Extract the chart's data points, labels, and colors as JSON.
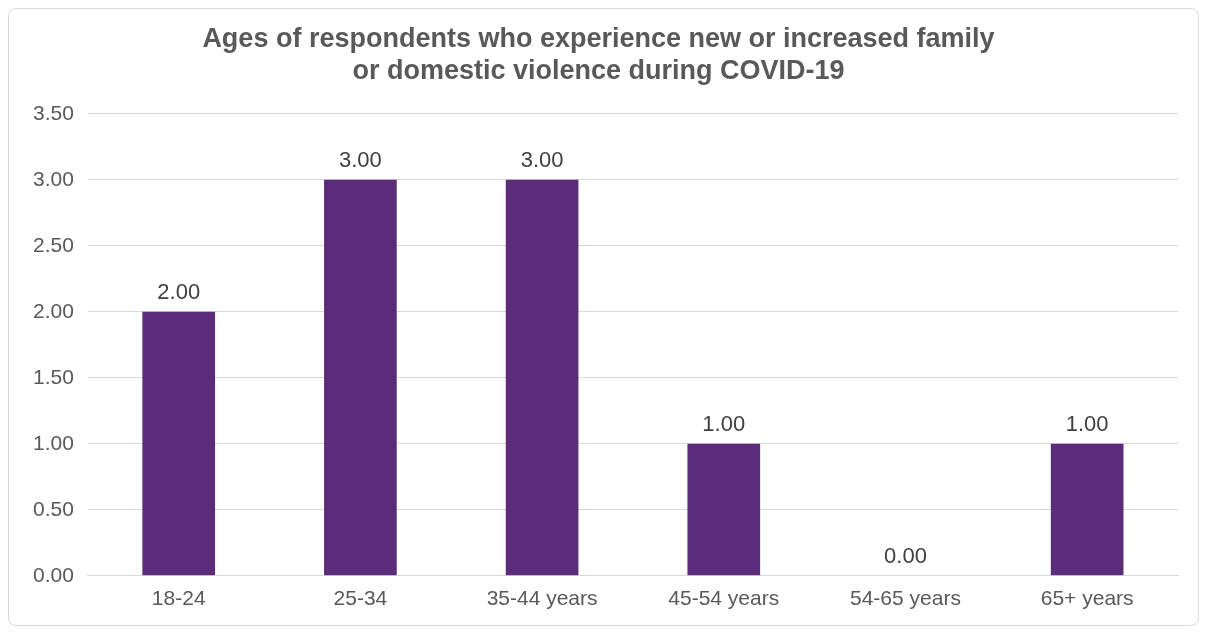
{
  "chart_data": {
    "type": "bar",
    "title": "Ages of respondents who experience new or increased family or domestic violence during COVID-19",
    "categories": [
      "18-24",
      "25-34",
      "35-44 years",
      "45-54 years",
      "54-65 years",
      "65+ years"
    ],
    "values": [
      2,
      3,
      3,
      1,
      0,
      1
    ],
    "value_labels": [
      "2.00",
      "3.00",
      "3.00",
      "1.00",
      "0.00",
      "1.00"
    ],
    "color": "#5b2c7a",
    "ylim": [
      0,
      3.5
    ],
    "yticks": [
      {
        "value": 0,
        "label": "0.00"
      },
      {
        "value": 0.5,
        "label": "0.50"
      },
      {
        "value": 1,
        "label": "1.00"
      },
      {
        "value": 1.5,
        "label": "1.50"
      },
      {
        "value": 2,
        "label": "2.00"
      },
      {
        "value": 2.5,
        "label": "2.50"
      },
      {
        "value": 3,
        "label": "3.00"
      },
      {
        "value": 3.5,
        "label": "3.50"
      }
    ],
    "grid": "y"
  }
}
